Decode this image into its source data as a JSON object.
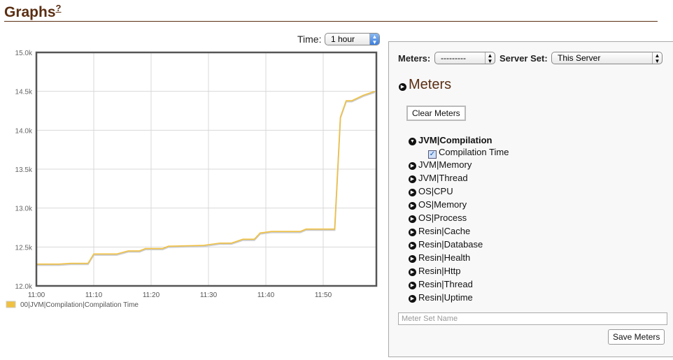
{
  "header": {
    "title": "Graphs",
    "help": "?"
  },
  "time": {
    "label": "Time:",
    "value": "1 hour"
  },
  "panel": {
    "meters_label": "Meters:",
    "meters_value": "---------",
    "server_set_label": "Server Set:",
    "server_set_value": "This Server",
    "heading": "Meters",
    "clear_button": "Clear Meters",
    "groups": [
      {
        "label": "JVM|Compilation",
        "expanded": true,
        "items": [
          {
            "label": "Compilation Time",
            "checked": true
          }
        ]
      },
      {
        "label": "JVM|Memory"
      },
      {
        "label": "JVM|Thread"
      },
      {
        "label": "OS|CPU"
      },
      {
        "label": "OS|Memory"
      },
      {
        "label": "OS|Process"
      },
      {
        "label": "Resin|Cache"
      },
      {
        "label": "Resin|Database"
      },
      {
        "label": "Resin|Health"
      },
      {
        "label": "Resin|Http"
      },
      {
        "label": "Resin|Thread"
      },
      {
        "label": "Resin|Uptime"
      }
    ],
    "name_placeholder": "Meter Set Name",
    "save_button": "Save Meters"
  },
  "chart_data": {
    "type": "line",
    "grid": true,
    "legend_position": "bottom-left",
    "ylim": [
      12000,
      15000
    ],
    "y_ticks": [
      "12.0k",
      "12.5k",
      "13.0k",
      "13.5k",
      "14.0k",
      "14.5k",
      "15.0k"
    ],
    "x_ticks": [
      "11:00",
      "11:10",
      "11:20",
      "11:30",
      "11:40",
      "11:50"
    ],
    "series": [
      {
        "name": "00|JVM|Compilation|Compilation Time",
        "color": "#f0c040",
        "x": [
          "11:00",
          "11:04",
          "11:06",
          "11:09",
          "11:10",
          "11:14",
          "11:16",
          "11:18",
          "11:19",
          "11:22",
          "11:23",
          "11:29",
          "11:32",
          "11:34",
          "11:36",
          "11:38",
          "11:39",
          "11:41",
          "11:46",
          "11:47",
          "11:52",
          "11:53",
          "11:54",
          "11:55",
          "11:57",
          "11:59"
        ],
        "y": [
          12280,
          12280,
          12290,
          12290,
          12410,
          12410,
          12450,
          12450,
          12480,
          12480,
          12510,
          12520,
          12550,
          12550,
          12600,
          12600,
          12680,
          12700,
          12700,
          12730,
          12730,
          14170,
          14380,
          14380,
          14450,
          14500
        ]
      }
    ]
  }
}
